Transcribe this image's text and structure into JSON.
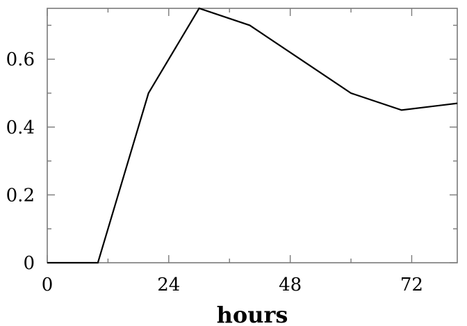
{
  "chart_data": {
    "type": "line",
    "title": "",
    "xlabel": "hours",
    "ylabel": "",
    "xlim": [
      0,
      81
    ],
    "ylim": [
      0,
      0.75
    ],
    "x_ticks": [
      0,
      24,
      48,
      72
    ],
    "x_tick_labels": [
      "0",
      "24",
      "48",
      "72"
    ],
    "x_minor_ticks": [
      12,
      36,
      60
    ],
    "y_ticks": [
      0,
      0.2,
      0.4,
      0.6
    ],
    "y_tick_labels": [
      "0",
      "0.2",
      "0.4",
      "0.6"
    ],
    "y_minor_ticks": [
      0.1,
      0.3,
      0.5,
      0.7
    ],
    "grid": false,
    "series": [
      {
        "x": [
          0,
          10,
          20,
          30,
          40,
          50,
          60,
          70,
          81
        ],
        "y": [
          0,
          0,
          0.5,
          0.75,
          0.7,
          0.6,
          0.5,
          0.45,
          0.47
        ]
      }
    ],
    "colors": {
      "line": "#000000",
      "frame": "#7a7a7a"
    }
  }
}
